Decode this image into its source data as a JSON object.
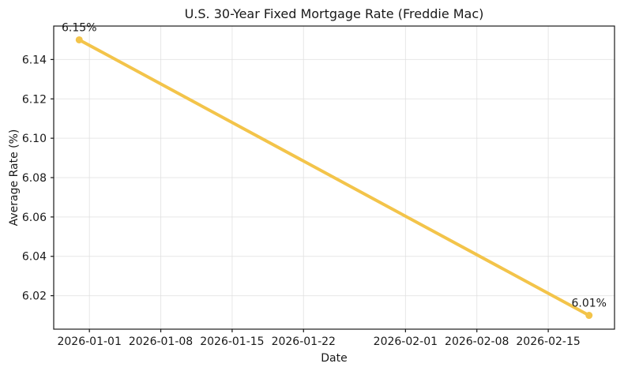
{
  "chart_data": {
    "type": "line",
    "title": "U.S. 30-Year Fixed Mortgage Rate (Freddie Mac)",
    "xlabel": "Date",
    "ylabel": "Average Rate (%)",
    "x": [
      "2025-12-31",
      "2026-02-19"
    ],
    "y": [
      6.15,
      6.01
    ],
    "point_labels": [
      "6.15%",
      "6.01%"
    ],
    "x_tick_labels": [
      "2026-01-01",
      "2026-01-08",
      "2026-01-15",
      "2026-01-22",
      "2026-02-01",
      "2026-02-08",
      "2026-02-15"
    ],
    "y_ticks": [
      6.02,
      6.04,
      6.06,
      6.08,
      6.1,
      6.12,
      6.14
    ],
    "y_tick_labels": [
      "6.02",
      "6.04",
      "6.06",
      "6.08",
      "6.10",
      "6.12",
      "6.14"
    ],
    "ylim": [
      6.003,
      6.157
    ],
    "x_margin_frac": 0.05,
    "grid": true,
    "legend_position": "none",
    "line_color": "#F3C44A",
    "marker": "circle",
    "grid_color": "#DFDFDF",
    "spine_color": "#1A1A1A",
    "text_color": "#191919",
    "background_color": "#FFFFFF"
  }
}
